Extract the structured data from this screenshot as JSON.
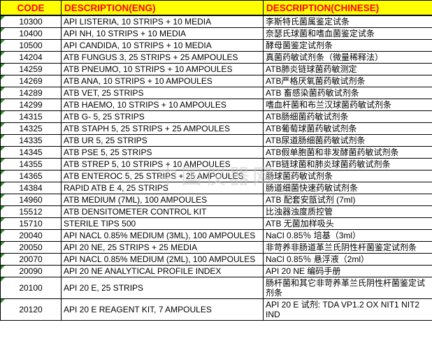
{
  "header": {
    "columns": [
      "CODE",
      "DESCRIPTION(ENG)",
      "DESCRIPTION(CHINESE)"
    ]
  },
  "colors": {
    "header_bg": "#FFFF00",
    "header_text": "#FF0000",
    "border": "#000000",
    "error_triangle": "#2e8b2e",
    "watermark": "#c9c9c9"
  },
  "watermark": "中国仪器网",
  "rows": [
    {
      "code": "10300",
      "eng": "API LISTERIA, 10 STRIPS + 10 MEDIA",
      "chn": "李斯特氏菌属鉴定试条"
    },
    {
      "code": "10400",
      "eng": "API NH, 10 STRIPS + 10 MEDIA",
      "chn": "奈瑟氏球菌和嗜血菌鉴定试条"
    },
    {
      "code": "10500",
      "eng": "API CANDIDA, 10 STRIPS + 10 MEDIA",
      "chn": "酵母菌鉴定试剂条"
    },
    {
      "code": "14204",
      "eng": "ATB FUNGUS 3, 25 STRIPS + 25 AMPOULES",
      "chn": "真菌药敏试剂条（微量稀释法）"
    },
    {
      "code": "14259",
      "eng": "ATB PNEUMO, 10 STRIPS + 10 AMPOULES",
      "chn": "ATB肺炎链球菌药敏测定"
    },
    {
      "code": "14269",
      "eng": "ATB ANA, 10 STRIPS + 10 AMPOULES",
      "chn": "ATB严格厌氧菌药敏试剂条"
    },
    {
      "code": "14289",
      "eng": "ATB VET, 25 STRIPS",
      "chn": "ATB 畜感染菌药敏试剂条"
    },
    {
      "code": "14299",
      "eng": "ATB HAEMO, 10 STRIPS + 10 AMPOULES",
      "chn": "嗜血杆菌和布兰汉球菌药敏试剂条"
    },
    {
      "code": "14315",
      "eng": "ATB G- 5, 25 STRIPS",
      "chn": "ATB肠细菌药敏试剂条"
    },
    {
      "code": "14325",
      "eng": "ATB STAPH 5, 25 STRIPS + 25 AMPOULES",
      "chn": "ATB葡萄球菌药敏试剂条"
    },
    {
      "code": "14335",
      "eng": "ATB UR 5, 25 STRIPS",
      "chn": "ATB尿道肠细菌药敏试剂条"
    },
    {
      "code": "14345",
      "eng": "ATB PSE 5, 25 STRIPS",
      "chn": "ATB假单胞菌和非发酵菌药敏试剂条"
    },
    {
      "code": "14355",
      "eng": "ATB STREP 5, 10 STRIPS + 10 AMPOULES",
      "chn": "ATB链球菌和肺炎球菌药敏试剂条"
    },
    {
      "code": "14365",
      "eng": "ATB ENTEROC 5, 25 STRIPS + 25 AMPOULES",
      "chn": "肠球菌药敏试剂条"
    },
    {
      "code": "14384",
      "eng": "RAPID ATB E 4, 25 STRIPS",
      "chn": "肠道细菌快速药敏试剂条"
    },
    {
      "code": "14960",
      "eng": "ATB MEDIUM (7ML), 100 AMPOULES",
      "chn": "ATB 配套安瓿试剂 (7ml)"
    },
    {
      "code": "15512",
      "eng": "ATB DENSITOMETER CONTROL KIT",
      "chn": "比浊器浊度质控管"
    },
    {
      "code": "15710",
      "eng": "STERILE TIPS 500",
      "chn": "ATB 无菌加样吸头"
    },
    {
      "code": "20040",
      "eng": "API NACL 0.85% MEDIUM (3ML), 100 AMPOULES",
      "chn": "NaCl 0.85％ 培基（3ml）"
    },
    {
      "code": "20050",
      "eng": "API 20 NE, 25 STRIPS + 25 MEDIA",
      "chn": "非苛养非肠道革兰氏阴性杆菌鉴定试剂条"
    },
    {
      "code": "20070",
      "eng": "API NACL 0.85% MEDIUM (2ML), 100 AMPOULES",
      "chn": "NaCl 0.85％ 悬浮液（2ml）"
    },
    {
      "code": "20090",
      "eng": "API 20 NE ANALYTICAL PROFILE INDEX",
      "chn": "API 20 NE 编码手册"
    },
    {
      "code": "20100",
      "eng": "API 20 E, 25 STRIPS",
      "chn": "肠杆菌和其它非苛养革兰氏阴性杆菌鉴定试剂条"
    },
    {
      "code": "20120",
      "eng": "API 20 E REAGENT KIT, 7 AMPOULES",
      "chn": "API 20 E 试剂: TDA VP1.2 OX NIT1 NIT2 IND"
    }
  ]
}
